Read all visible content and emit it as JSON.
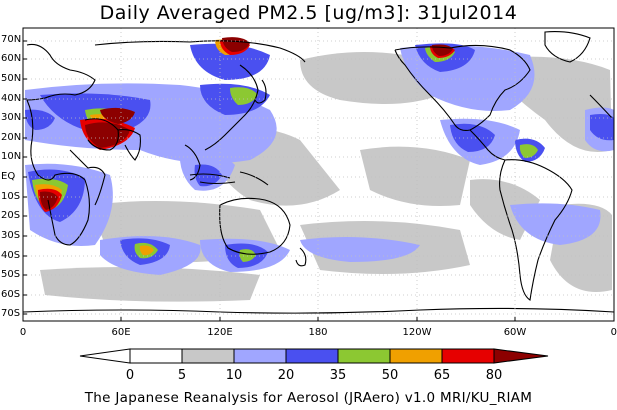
{
  "title": "Daily Averaged PM2.5 [ug/m3]: 31Jul2014",
  "footer": "The Japanese Reanalysis for Aerosol (JRAero) v1.0 MRI/KU_RIAM",
  "latitude_labels": [
    "70N",
    "60N",
    "50N",
    "40N",
    "30N",
    "20N",
    "10N",
    "EQ",
    "10S",
    "20S",
    "30S",
    "40S",
    "50S",
    "60S",
    "70S"
  ],
  "longitude_labels": [
    "0",
    "60E",
    "120E",
    "180",
    "120W",
    "60W",
    "0"
  ],
  "colorbar": {
    "levels": [
      "0",
      "5",
      "10",
      "20",
      "35",
      "50",
      "65",
      "80"
    ],
    "colors": [
      "#ffffff",
      "#c8c8c8",
      "#a0a6ff",
      "#4a50f0",
      "#8cc832",
      "#f0a000",
      "#e60000",
      "#8c0000"
    ]
  },
  "colors": {
    "ocean": "#ffffff",
    "coast": "#000000",
    "grid": "#c0c0c0"
  }
}
